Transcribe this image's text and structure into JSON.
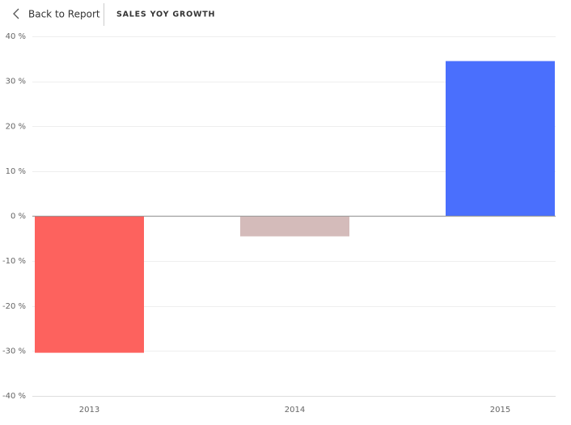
{
  "header": {
    "back": "Back to Report",
    "title": "SALES YOY GROWTH"
  },
  "chart_data": {
    "type": "bar",
    "categories": [
      "2013",
      "2014",
      "2015"
    ],
    "values": [
      -30.4,
      -4.5,
      34.5
    ],
    "colors": [
      "#fd625e",
      "#d4bbba",
      "#4a6ffd"
    ],
    "ylim": [
      -40,
      40
    ],
    "yticks": [
      {
        "value": -40,
        "label": "-40 %"
      },
      {
        "value": -30,
        "label": "-30 %"
      },
      {
        "value": -20,
        "label": "-20 %"
      },
      {
        "value": -10,
        "label": "-10 %"
      },
      {
        "value": 0,
        "label": "0 %"
      },
      {
        "value": 10,
        "label": "10 %"
      },
      {
        "value": 20,
        "label": "20 %"
      },
      {
        "value": 30,
        "label": "30 %"
      },
      {
        "value": 40,
        "label": "40 %"
      }
    ],
    "grid": true
  }
}
